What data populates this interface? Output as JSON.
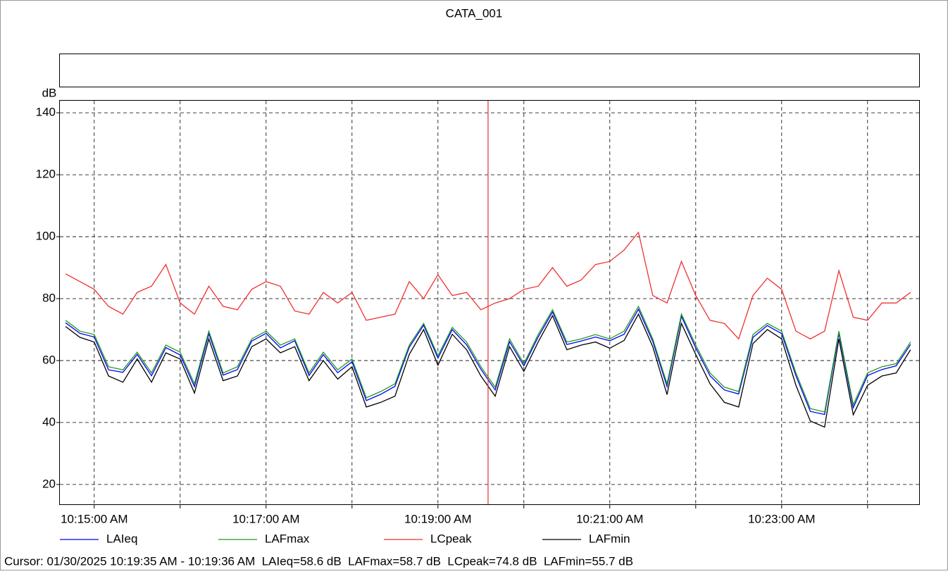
{
  "chart_data": {
    "type": "line",
    "title": "CATA_001",
    "y_label": "dB",
    "x": [
      "10:14:40 AM",
      "10:14:50 AM",
      "10:15:00 AM",
      "10:15:10 AM",
      "10:15:20 AM",
      "10:15:30 AM",
      "10:15:40 AM",
      "10:15:50 AM",
      "10:16:00 AM",
      "10:16:10 AM",
      "10:16:20 AM",
      "10:16:30 AM",
      "10:16:40 AM",
      "10:16:50 AM",
      "10:17:00 AM",
      "10:17:10 AM",
      "10:17:20 AM",
      "10:17:30 AM",
      "10:17:40 AM",
      "10:17:50 AM",
      "10:18:00 AM",
      "10:18:10 AM",
      "10:18:20 AM",
      "10:18:30 AM",
      "10:18:40 AM",
      "10:18:50 AM",
      "10:19:00 AM",
      "10:19:10 AM",
      "10:19:20 AM",
      "10:19:30 AM",
      "10:19:40 AM",
      "10:19:50 AM",
      "10:20:00 AM",
      "10:20:10 AM",
      "10:20:20 AM",
      "10:20:30 AM",
      "10:20:40 AM",
      "10:20:50 AM",
      "10:21:00 AM",
      "10:21:10 AM",
      "10:21:20 AM",
      "10:21:30 AM",
      "10:21:40 AM",
      "10:21:50 AM",
      "10:22:00 AM",
      "10:22:10 AM",
      "10:22:20 AM",
      "10:22:30 AM",
      "10:22:40 AM",
      "10:22:50 AM",
      "10:23:00 AM",
      "10:23:10 AM",
      "10:23:20 AM",
      "10:23:30 AM",
      "10:23:40 AM",
      "10:23:50 AM",
      "10:24:00 AM",
      "10:24:10 AM",
      "10:24:20 AM",
      "10:24:30 AM"
    ],
    "series": [
      {
        "name": "LAIeq",
        "color": "#0000ff",
        "values": [
          72.2,
          68.8,
          67.6,
          57,
          56.2,
          62,
          55.1,
          64.2,
          61.8,
          51.6,
          68.7,
          55.3,
          57.1,
          66.3,
          68.8,
          64.1,
          66.4,
          55.2,
          61.9,
          56.1,
          59.6,
          47.1,
          49.1,
          51.7,
          64.3,
          71.4,
          60.8,
          70,
          65.1,
          57.2,
          50.5,
          66.1,
          58.3,
          67.6,
          75.7,
          65.2,
          66.3,
          67.6,
          66.4,
          68.5,
          76.6,
          66.2,
          51.6,
          74.3,
          64.1,
          55.1,
          50.5,
          49.2,
          67.5,
          71.3,
          68.7,
          55.1,
          43.6,
          42.6,
          68.8,
          44.8,
          55.2,
          57.1,
          58.3,
          65.2
        ]
      },
      {
        "name": "LAFmax",
        "color": "#1f9a1f",
        "values": [
          73,
          69.5,
          68.4,
          58,
          57,
          62.7,
          56,
          65,
          62.7,
          52.5,
          69.5,
          56,
          58,
          67,
          69.5,
          65,
          67,
          56,
          62.7,
          57,
          60.5,
          48,
          50,
          52.5,
          65,
          72,
          61.6,
          70.7,
          66,
          58,
          51.4,
          67,
          59,
          68.4,
          76.4,
          66,
          67,
          68.4,
          67,
          69.5,
          77.5,
          67,
          52.5,
          75,
          65,
          56,
          51.4,
          50,
          68.4,
          72,
          69.5,
          56,
          44.5,
          43.4,
          69.5,
          45.7,
          56,
          58,
          59,
          66
        ]
      },
      {
        "name": "LCpeak",
        "color": "#f03030",
        "values": [
          88,
          85.5,
          83,
          77.5,
          75,
          82,
          84,
          91,
          78.6,
          75,
          84,
          77.5,
          76.4,
          83,
          85.5,
          84,
          76,
          75,
          82,
          78.6,
          82,
          73,
          74,
          75,
          85.5,
          80,
          87.7,
          81,
          82,
          76.4,
          78.6,
          80,
          83,
          84,
          90,
          84,
          86,
          91,
          92,
          95.7,
          101.4,
          81,
          78.6,
          92,
          81,
          73,
          72,
          67,
          81,
          86.6,
          83,
          69.5,
          67,
          69.5,
          89,
          74,
          73,
          78.6,
          78.6,
          82
        ]
      },
      {
        "name": "LAFmin",
        "color": "#000000",
        "values": [
          71,
          67.5,
          66,
          55,
          53,
          60.5,
          53,
          62.5,
          60.5,
          49.5,
          67,
          53.5,
          55,
          64.5,
          67,
          62.5,
          64.5,
          53.5,
          60,
          54,
          58,
          45,
          46.5,
          48.5,
          62,
          70,
          58.5,
          68.5,
          63.5,
          55,
          48.5,
          64.5,
          56.5,
          66,
          74.5,
          63.5,
          65,
          66,
          64,
          66.5,
          75,
          64.5,
          49,
          72,
          62,
          52.5,
          46.5,
          45,
          65.5,
          70,
          67,
          52,
          40.5,
          38.5,
          67,
          42.5,
          52,
          55,
          56,
          63.5
        ]
      }
    ],
    "xlim": [
      "10:14:36 AM",
      "10:24:36 AM"
    ],
    "xticks": [
      "10:15:00 AM",
      {
        "value": "10:16:00 AM",
        "label": null
      },
      "10:17:00 AM",
      {
        "value": "10:18:00 AM",
        "label": null
      },
      "10:19:00 AM",
      {
        "value": "10:20:00 AM",
        "label": null
      },
      "10:21:00 AM",
      {
        "value": "10:22:00 AM",
        "label": null
      },
      "10:23:00 AM",
      {
        "value": "10:24:00 AM",
        "label": null
      }
    ],
    "ylim": [
      13.6,
      143.9
    ],
    "yticks": [
      20,
      40,
      60,
      80,
      100,
      120,
      140
    ],
    "grid": true,
    "legend": "bottom",
    "cursor": {
      "x": "10:19:35 AM",
      "color": "#e03030"
    },
    "status": "Cursor: 01/30/2025 10:19:35 AM - 10:19:36 AM  LAIeq=58.6 dB  LAFmax=58.7 dB  LCpeak=74.8 dB  LAFmin=55.7 dB"
  }
}
